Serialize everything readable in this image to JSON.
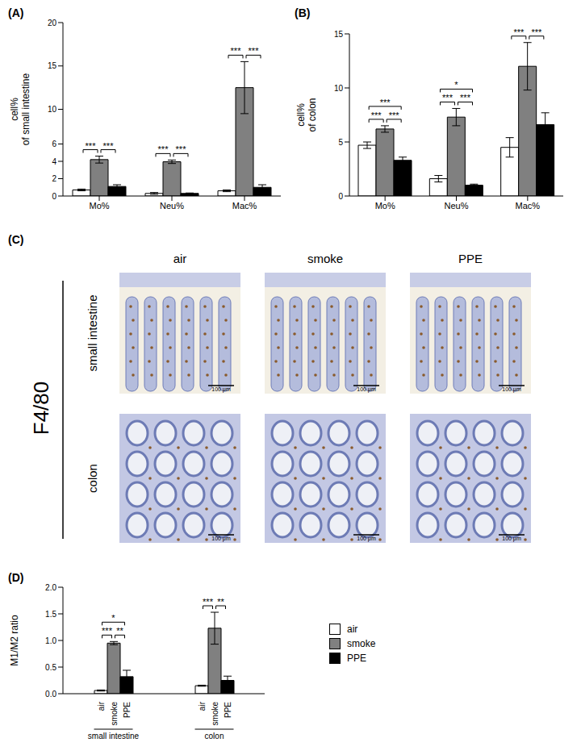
{
  "chart_data": [
    {
      "panel": "(A)",
      "type": "bar",
      "y_label": [
        "cell%",
        "of small intestine"
      ],
      "categories": [
        "Mo%",
        "Neu%",
        "Mac%"
      ],
      "series": [
        {
          "name": "air",
          "color": "#ffffff",
          "values": [
            0.7,
            0.3,
            0.6
          ],
          "errors": [
            0.1,
            0.1,
            0.1
          ]
        },
        {
          "name": "smoke",
          "color": "#808080",
          "values": [
            4.2,
            3.95,
            12.5
          ],
          "errors": [
            0.4,
            0.2,
            3.0
          ]
        },
        {
          "name": "PPE",
          "color": "#000000",
          "values": [
            1.1,
            0.3,
            1.0
          ],
          "errors": [
            0.2,
            0.05,
            0.3
          ]
        }
      ],
      "ylim": [
        0,
        20
      ],
      "yticks": [
        0,
        2,
        4,
        6,
        10,
        15,
        20
      ],
      "annotations": [
        {
          "category": "Mo%",
          "from": "air",
          "to": "smoke",
          "label": "***"
        },
        {
          "category": "Mo%",
          "from": "smoke",
          "to": "PPE",
          "label": "***"
        },
        {
          "category": "Neu%",
          "from": "air",
          "to": "smoke",
          "label": "***"
        },
        {
          "category": "Neu%",
          "from": "smoke",
          "to": "PPE",
          "label": "***"
        },
        {
          "category": "Mac%",
          "from": "air",
          "to": "smoke",
          "label": "***"
        },
        {
          "category": "Mac%",
          "from": "smoke",
          "to": "PPE",
          "label": "***"
        }
      ]
    },
    {
      "panel": "(B)",
      "type": "bar",
      "y_label": [
        "cell%",
        "of colon"
      ],
      "categories": [
        "Mo%",
        "Neu%",
        "Mac%"
      ],
      "series": [
        {
          "name": "air",
          "color": "#ffffff",
          "values": [
            4.7,
            1.6,
            4.5
          ],
          "errors": [
            0.3,
            0.3,
            0.9
          ]
        },
        {
          "name": "smoke",
          "color": "#808080",
          "values": [
            6.2,
            7.3,
            12.0
          ],
          "errors": [
            0.3,
            0.8,
            2.2
          ]
        },
        {
          "name": "PPE",
          "color": "#000000",
          "values": [
            3.3,
            1.0,
            6.6
          ],
          "errors": [
            0.3,
            0.1,
            1.1
          ]
        }
      ],
      "ylim": [
        0,
        15
      ],
      "yticks": [
        0,
        5,
        10,
        15
      ],
      "annotations": [
        {
          "category": "Mo%",
          "from": "air",
          "to": "smoke",
          "label": "***"
        },
        {
          "category": "Mo%",
          "from": "smoke",
          "to": "PPE",
          "label": "***"
        },
        {
          "category": "Mo%",
          "from": "air",
          "to": "PPE",
          "label": "***"
        },
        {
          "category": "Neu%",
          "from": "air",
          "to": "smoke",
          "label": "***"
        },
        {
          "category": "Neu%",
          "from": "smoke",
          "to": "PPE",
          "label": "***"
        },
        {
          "category": "Neu%",
          "from": "air",
          "to": "PPE",
          "label": "*"
        },
        {
          "category": "Mac%",
          "from": "air",
          "to": "smoke",
          "label": "***"
        },
        {
          "category": "Mac%",
          "from": "smoke",
          "to": "PPE",
          "label": "***"
        }
      ]
    },
    {
      "panel": "(D)",
      "type": "bar",
      "y_label": [
        "M1/M2 ratio"
      ],
      "categories": [
        "small intestine",
        "colon"
      ],
      "series": [
        {
          "name": "air",
          "color": "#ffffff",
          "values": [
            0.06,
            0.15
          ],
          "errors": [
            0.01,
            0.01
          ]
        },
        {
          "name": "smoke",
          "color": "#808080",
          "values": [
            0.95,
            1.23
          ],
          "errors": [
            0.03,
            0.3
          ]
        },
        {
          "name": "PPE",
          "color": "#000000",
          "values": [
            0.32,
            0.25
          ],
          "errors": [
            0.12,
            0.08
          ]
        }
      ],
      "ylim": [
        0,
        2
      ],
      "yticks": [
        {
          "value": 0,
          "label": "0.0"
        },
        {
          "value": 0.5,
          "label": "0.5"
        },
        {
          "value": 1,
          "label": "1.0"
        },
        {
          "value": 1.5,
          "label": "1.5"
        },
        {
          "value": 2,
          "label": "2.0"
        }
      ],
      "legend": "right",
      "annotations": [
        {
          "category": "small intestine",
          "from": "air",
          "to": "smoke",
          "label": "***"
        },
        {
          "category": "small intestine",
          "from": "smoke",
          "to": "PPE",
          "label": "**"
        },
        {
          "category": "small intestine",
          "from": "air",
          "to": "PPE",
          "label": "*"
        },
        {
          "category": "colon",
          "from": "air",
          "to": "smoke",
          "label": "***"
        },
        {
          "category": "colon",
          "from": "smoke",
          "to": "PPE",
          "label": "**"
        }
      ]
    }
  ],
  "panel_c": {
    "panel": "(C)",
    "stain": "F4/80",
    "columns": [
      "air",
      "smoke",
      "PPE"
    ],
    "rows": [
      "small intestine",
      "colon"
    ],
    "scale_bar": "100 μm"
  }
}
